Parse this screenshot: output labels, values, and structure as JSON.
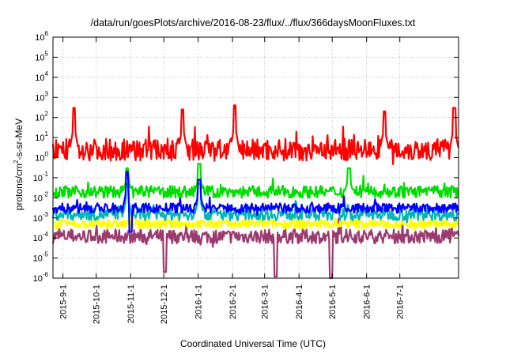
{
  "chart_data": {
    "type": "line",
    "title": "/data/run/goesPlots/archive/2016-08-23/flux/../flux/366daysMoonFluxes.txt",
    "xlabel": "Coordinated Universal Time (UTC)",
    "ylabel_base": "protons/cm",
    "ylabel_sup": "2",
    "ylabel_rest": "-s-sr-MeV",
    "y_scale": "log",
    "ylim": [
      1e-06,
      1000000.0
    ],
    "y_ticks": [
      {
        "base": "10",
        "exp": "-6",
        "value": 1e-06
      },
      {
        "base": "10",
        "exp": "-5",
        "value": 1e-05
      },
      {
        "base": "10",
        "exp": "-4",
        "value": 0.0001
      },
      {
        "base": "10",
        "exp": "-3",
        "value": 0.001
      },
      {
        "base": "10",
        "exp": "-2",
        "value": 0.01
      },
      {
        "base": "10",
        "exp": "-1",
        "value": 0.1
      },
      {
        "base": "10",
        "exp": "0",
        "value": 1
      },
      {
        "base": "10",
        "exp": "1",
        "value": 10
      },
      {
        "base": "10",
        "exp": "2",
        "value": 100
      },
      {
        "base": "10",
        "exp": "3",
        "value": 1000
      },
      {
        "base": "10",
        "exp": "4",
        "value": 10000
      },
      {
        "base": "10",
        "exp": "5",
        "value": 100000
      },
      {
        "base": "10",
        "exp": "6",
        "value": 1000000
      }
    ],
    "x_range": [
      "2015-08-23",
      "2016-08-23"
    ],
    "x_ticks": [
      {
        "label": "2015-9-1",
        "date": "2015-09-01"
      },
      {
        "label": "2015-10-1",
        "date": "2015-10-01"
      },
      {
        "label": "2015-11-1",
        "date": "2015-11-01"
      },
      {
        "label": "2015-12-1",
        "date": "2015-12-01"
      },
      {
        "label": "2016-1-1",
        "date": "2016-01-01"
      },
      {
        "label": "2016-2-1",
        "date": "2016-02-01"
      },
      {
        "label": "2016-3-1",
        "date": "2016-03-01"
      },
      {
        "label": "2016-4-1",
        "date": "2016-04-01"
      },
      {
        "label": "2016-5-1",
        "date": "2016-05-01"
      },
      {
        "label": "2016-6-1",
        "date": "2016-06-01"
      },
      {
        "label": "2016-7-1",
        "date": "2016-07-01"
      }
    ],
    "grid": true,
    "series": [
      {
        "color": "#9b3a6e",
        "baseline": 0.00012,
        "spread": 0.35,
        "events": [
          {
            "date": "2015-12-02",
            "value": 2e-06
          },
          {
            "date": "2016-03-11",
            "value": 1.2e-06
          },
          {
            "date": "2016-04-30",
            "value": 1e-06
          }
        ]
      },
      {
        "color": "#ffff00",
        "baseline": 0.0005,
        "spread": 0.22,
        "events": []
      },
      {
        "color": "#00b6b6",
        "baseline": 0.0015,
        "spread": 0.3,
        "events": [
          {
            "date": "2015-10-29",
            "value": 0.05
          },
          {
            "date": "2016-01-02",
            "value": 0.05
          }
        ]
      },
      {
        "color": "#00dd00",
        "baseline": 0.02,
        "spread": 0.3,
        "events": [
          {
            "date": "2015-10-29",
            "value": 0.3
          },
          {
            "date": "2016-01-02",
            "value": 0.5
          },
          {
            "date": "2016-05-16",
            "value": 0.3
          }
        ]
      },
      {
        "color": "#0000ff",
        "baseline": 0.003,
        "spread": 0.25,
        "events": [
          {
            "date": "2015-10-29",
            "value": 0.2
          },
          {
            "date": "2015-11-01",
            "value": 0.0002
          },
          {
            "date": "2016-01-02",
            "value": 0.08
          }
        ]
      },
      {
        "color": "#ff0000",
        "baseline": 2.5,
        "spread": 0.55,
        "events": [
          {
            "date": "2015-09-11",
            "value": 300
          },
          {
            "date": "2015-12-18",
            "value": 250
          },
          {
            "date": "2016-02-03",
            "value": 400
          },
          {
            "date": "2016-06-17",
            "value": 200
          },
          {
            "date": "2016-08-19",
            "value": 300
          }
        ]
      }
    ]
  }
}
